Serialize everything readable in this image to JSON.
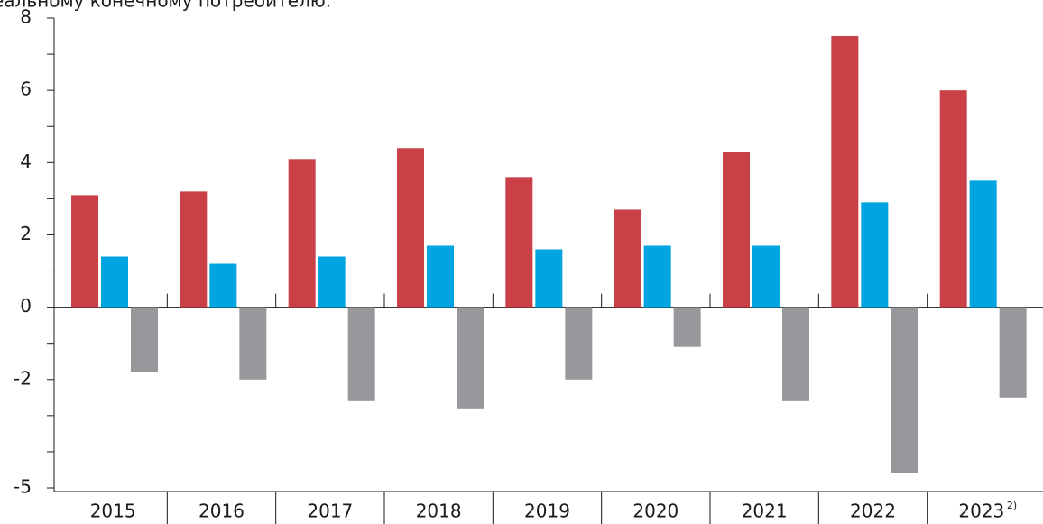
{
  "chart_data": {
    "type": "bar",
    "subtitle": "еальному конечному потребителю.",
    "categories": [
      "2015",
      "2016",
      "2017",
      "2018",
      "2019",
      "2020",
      "2021",
      "2022",
      "2023"
    ],
    "footnote_mark": "2)",
    "series": [
      {
        "color": "#c94146",
        "values": [
          3.1,
          3.2,
          4.1,
          4.4,
          3.6,
          2.7,
          4.3,
          7.5,
          6.0
        ]
      },
      {
        "color": "#00a4e0",
        "values": [
          1.4,
          1.2,
          1.4,
          1.7,
          1.6,
          1.7,
          1.7,
          2.9,
          3.5
        ]
      },
      {
        "color": "#97979c",
        "values": [
          -1.8,
          -2.0,
          -2.6,
          -2.8,
          -2.0,
          -1.1,
          -2.6,
          -4.6,
          -2.5
        ]
      }
    ],
    "ylim": [
      -5,
      8
    ],
    "yticks": [
      8,
      6,
      4,
      2,
      0,
      -2,
      -5
    ],
    "minor_yticks": [
      7,
      5,
      3,
      1,
      -1,
      -3,
      -4
    ]
  }
}
